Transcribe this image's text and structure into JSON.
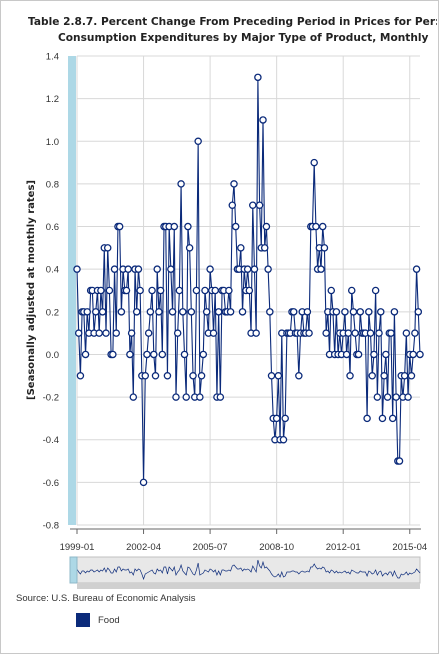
{
  "title": {
    "line1": "Table 2.8.7. Percent Change From Preceding Period in Prices for Per:",
    "line2": "Consumption Expenditures by Major Type of Product, Monthly"
  },
  "source": "Source: U.S. Bureau of Economic Analysis",
  "legend": {
    "label": "Food",
    "color": "#0b2a7a"
  },
  "colors": {
    "line": "#0b2a7a",
    "point_fill": "#ffffff",
    "grid": "#d8d8d8",
    "scrollbar": "#add8e6"
  },
  "chart_data": {
    "type": "line",
    "title": "Table 2.8.7. Percent Change From Preceding Period in Prices for Per: Consumption Expenditures by Major Type of Product, Monthly",
    "ylabel": "[Seasonally adjusted at monthly rates]",
    "xlabel": "",
    "ylim": [
      -0.8,
      1.4
    ],
    "yticks": [
      "1.4",
      "1.2",
      "1.0",
      "0.8",
      "0.6",
      "0.4",
      "0.2",
      "0.0",
      "-0.2",
      "-0.4",
      "-0.6",
      "-0.8"
    ],
    "xticks": [
      "1999-01",
      "2002-04",
      "2005-07",
      "2008-10",
      "2012-01",
      "2015-04"
    ],
    "x_start": "1999-01",
    "x_step": "1 month",
    "grid": true,
    "legend_position": "bottom-left",
    "series": [
      {
        "name": "Food",
        "values": [
          0.4,
          0.1,
          -0.1,
          0.2,
          0.2,
          0.0,
          0.2,
          0.1,
          0.3,
          0.3,
          0.1,
          0.2,
          0.3,
          0.1,
          0.3,
          0.2,
          0.5,
          0.1,
          0.5,
          0.3,
          0.0,
          0.0,
          0.4,
          0.1,
          0.6,
          0.6,
          0.2,
          0.4,
          0.3,
          0.3,
          0.4,
          0.0,
          0.1,
          -0.2,
          0.4,
          0.2,
          0.4,
          0.3,
          -0.1,
          -0.6,
          -0.1,
          0.0,
          0.1,
          0.2,
          0.3,
          0.0,
          -0.1,
          0.4,
          0.2,
          0.3,
          0.0,
          0.6,
          0.6,
          -0.1,
          0.6,
          0.4,
          0.2,
          0.6,
          -0.2,
          0.1,
          0.3,
          0.8,
          0.2,
          0.0,
          -0.2,
          0.6,
          0.5,
          0.2,
          -0.1,
          -0.2,
          0.3,
          1.0,
          -0.2,
          -0.1,
          0.0,
          0.3,
          0.2,
          0.1,
          0.4,
          0.3,
          0.1,
          0.3,
          -0.2,
          0.2,
          -0.2,
          0.3,
          0.3,
          0.2,
          0.2,
          0.3,
          0.2,
          0.7,
          0.8,
          0.6,
          0.4,
          0.4,
          0.5,
          0.2,
          0.4,
          0.3,
          0.4,
          0.3,
          0.1,
          0.7,
          0.4,
          0.1,
          1.3,
          0.7,
          0.5,
          1.1,
          0.5,
          0.6,
          0.4,
          0.2,
          -0.1,
          -0.3,
          -0.4,
          -0.3,
          -0.1,
          -0.4,
          0.1,
          -0.4,
          -0.3,
          0.1,
          0.1,
          0.1,
          0.2,
          0.2,
          0.1,
          0.1,
          -0.1,
          0.1,
          0.2,
          0.1,
          0.1,
          0.2,
          0.1,
          0.6,
          0.6,
          0.9,
          0.6,
          0.4,
          0.5,
          0.4,
          0.6,
          0.5,
          0.1,
          0.2,
          0.0,
          0.3,
          0.2,
          0.0,
          0.2,
          0.0,
          0.1,
          0.0,
          0.1,
          0.2,
          0.0,
          0.1,
          -0.1,
          0.3,
          0.2,
          0.1,
          0.0,
          0.0,
          0.2,
          0.1,
          0.1,
          0.1,
          -0.3,
          0.2,
          0.1,
          -0.1,
          0.0,
          0.3,
          -0.2,
          0.1,
          0.2,
          -0.3,
          -0.1,
          0.0,
          -0.2,
          0.1,
          0.1,
          -0.3,
          0.2,
          -0.2,
          -0.5,
          -0.5,
          -0.1,
          -0.2,
          -0.1,
          0.1,
          -0.2,
          0.0,
          -0.1,
          0.0,
          0.1,
          0.4,
          0.2,
          0.0
        ]
      }
    ]
  }
}
